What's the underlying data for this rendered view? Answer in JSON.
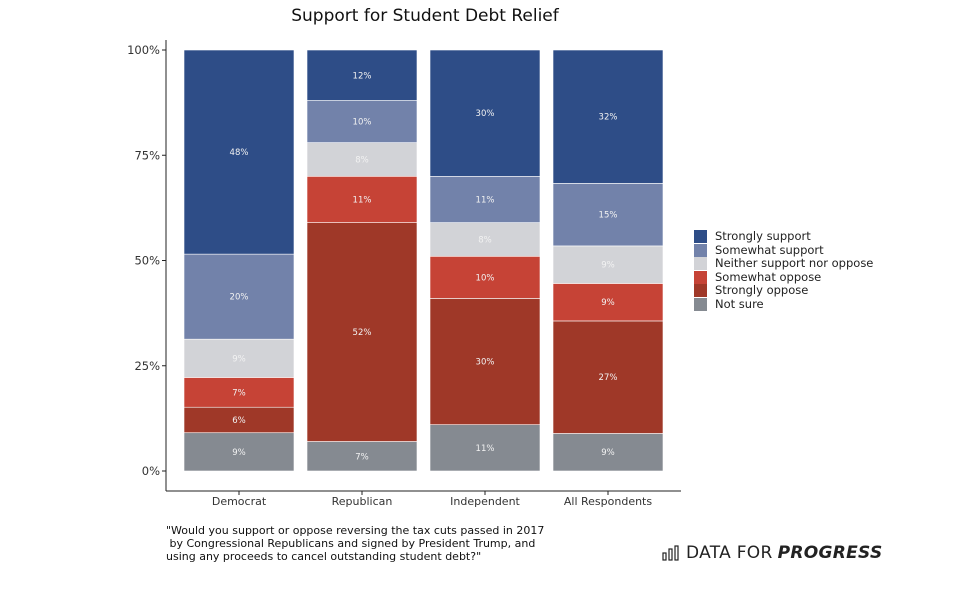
{
  "chart_data": {
    "type": "bar",
    "stacked": true,
    "title": "Support for Student Debt Relief",
    "xlabel": "",
    "ylabel": "",
    "ylim": [
      0,
      100
    ],
    "yticks": [
      "0%",
      "25%",
      "50%",
      "75%",
      "100%"
    ],
    "ytick_values": [
      0,
      25,
      50,
      75,
      100
    ],
    "categories": [
      "Democrat",
      "Republican",
      "Independent",
      "All Respondents"
    ],
    "series": [
      {
        "name": "Not sure",
        "color": "#858a91",
        "values": [
          9,
          7,
          11,
          9
        ]
      },
      {
        "name": "Strongly oppose",
        "color": "#9f3828",
        "values": [
          6,
          52,
          30,
          27
        ]
      },
      {
        "name": "Somewhat oppose",
        "color": "#c64336",
        "values": [
          7,
          11,
          10,
          9
        ]
      },
      {
        "name": "Neither support nor oppose",
        "color": "#d2d3d7",
        "values": [
          9,
          8,
          8,
          9
        ]
      },
      {
        "name": "Somewhat support",
        "color": "#7282aa",
        "values": [
          20,
          10,
          11,
          15
        ]
      },
      {
        "name": "Strongly support",
        "color": "#2e4d87",
        "values": [
          48,
          12,
          30,
          32
        ]
      }
    ],
    "legend": {
      "position": "right",
      "order": [
        "Strongly support",
        "Somewhat support",
        "Neither support nor oppose",
        "Somewhat oppose",
        "Strongly oppose",
        "Not sure"
      ]
    },
    "grid": false
  },
  "caption": "\"Would you support or oppose reversing the tax cuts passed in 2017\n by Congressional Republicans and signed by President Trump, and\nusing any proceeds to cancel outstanding student debt?\"",
  "logo": {
    "text_plain": "DATA FOR",
    "text_bold": "PROGRESS"
  }
}
